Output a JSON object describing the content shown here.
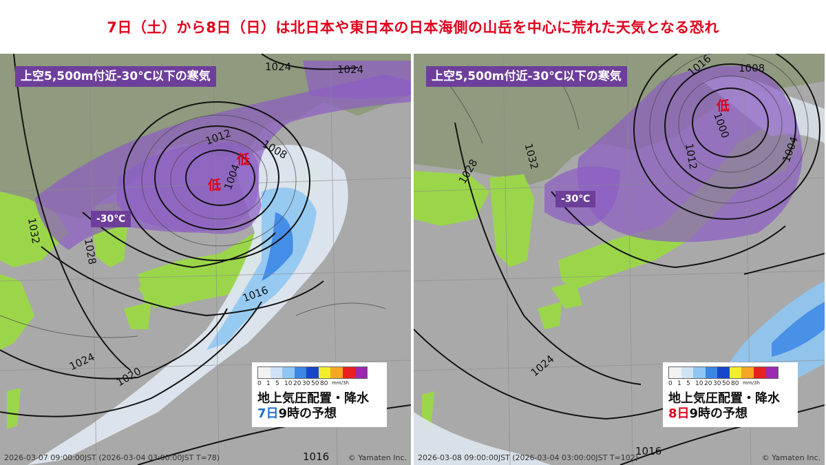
{
  "headline": "7日（土）から8日（日）は北日本や東日本の日本海側の山岳を中心に荒れた天気となる恐れ",
  "colors": {
    "headline": "#e0001b",
    "cold_air": "#6d3f9a",
    "land": "#9bd64a",
    "sea": "#a9a9a9",
    "day_left": "#1f6fd0",
    "day_right": "#e0001b"
  },
  "legend_colors": [
    "#f2f2f2",
    "#cfe3f7",
    "#8fc6f2",
    "#3c87e6",
    "#1747c8",
    "#f2ee2a",
    "#f5a623",
    "#e82020",
    "#9c27b0"
  ],
  "panels": [
    {
      "cold_label": "上空5,500m付近-30℃以下の寒気",
      "temp_label": "-30℃",
      "low_marks": [
        "低",
        "低"
      ],
      "isobars": [
        "1024",
        "1024",
        "1012",
        "1008",
        "1004",
        "1032",
        "1028",
        "1016",
        "1024",
        "1020",
        "1016"
      ],
      "legend": {
        "ticks": [
          "0",
          "1",
          "5",
          "10",
          "20",
          "30",
          "50",
          "80"
        ],
        "unit": "mm/3h",
        "title": "地上気圧配置・降水",
        "day": "7日",
        "time_suffix": "9時の予想"
      },
      "footer": "2026-03-07 09:00:00JST (2026-03-04 03:00:00JST T=78)",
      "copyright": "© Yamaten Inc."
    },
    {
      "cold_label": "上空5,500m付近-30℃以下の寒気",
      "temp_label": "-30℃",
      "low_marks": [
        "低"
      ],
      "isobars": [
        "1016",
        "1008",
        "1000",
        "1004",
        "1032",
        "1012",
        "1028",
        "1024",
        "1016"
      ],
      "legend": {
        "ticks": [
          "0",
          "1",
          "5",
          "10",
          "20",
          "30",
          "50",
          "80"
        ],
        "unit": "mm/3h",
        "title": "地上気圧配置・降水",
        "day": "8日",
        "time_suffix": "9時の予想"
      },
      "footer": "2026-03-08 09:00:00JST (2026-03-04 03:00:00JST T=102)",
      "copyright": "© Yamaten Inc."
    }
  ]
}
